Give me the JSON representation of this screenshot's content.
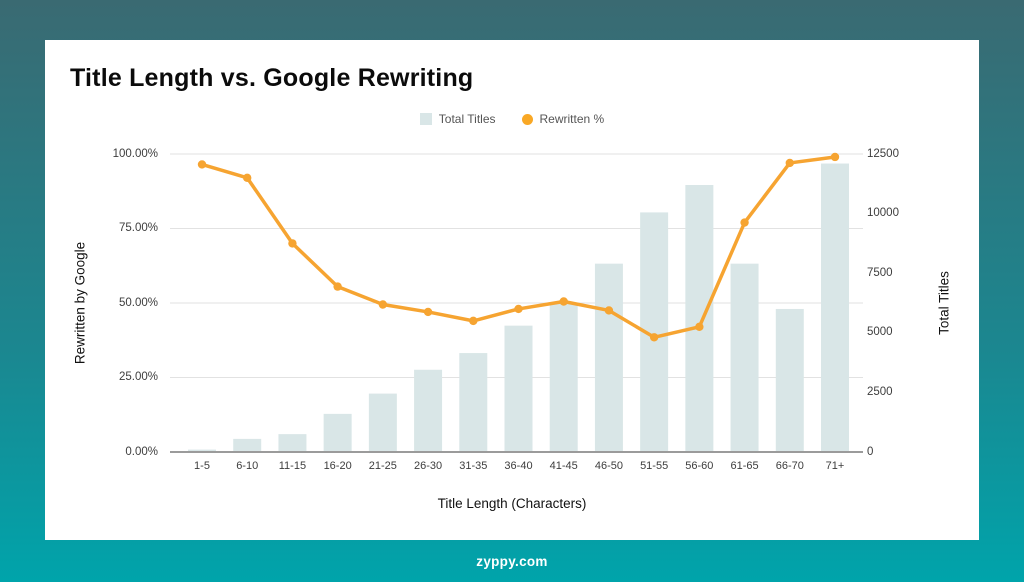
{
  "page": {
    "footer_text": "zyppy.com",
    "background_top_color": "#3a6a72",
    "background_bottom_color": "#00a4ab"
  },
  "chart_data": {
    "type": "bar",
    "subtype": "combo-bar-line-dual-axis",
    "title": "Title Length vs. Google Rewriting",
    "categories": [
      "1-5",
      "6-10",
      "11-15",
      "16-20",
      "21-25",
      "26-30",
      "31-35",
      "36-40",
      "41-45",
      "46-50",
      "51-55",
      "56-60",
      "61-65",
      "66-70",
      "71+"
    ],
    "series": [
      {
        "name": "Total Titles",
        "type": "bar",
        "axis": "right",
        "color": "#d9e6e7",
        "values": [
          100,
          550,
          750,
          1600,
          2450,
          3450,
          4150,
          5300,
          6250,
          7900,
          10050,
          11200,
          7900,
          6000,
          12100
        ]
      },
      {
        "name": "Rewritten %",
        "type": "line",
        "axis": "left",
        "color": "#f6a431",
        "values": [
          96.5,
          92,
          70,
          55.5,
          49.5,
          47,
          44,
          48,
          50.5,
          47.5,
          38.5,
          42,
          77,
          97,
          99
        ]
      }
    ],
    "left_axis": {
      "label": "Rewritten by Google",
      "min": 0,
      "max": 100,
      "tick_labels": [
        "0.00%",
        "25.00%",
        "50.00%",
        "75.00%",
        "100.00%"
      ]
    },
    "right_axis": {
      "label": "Total Titles",
      "min": 0,
      "max": 12500,
      "tick_labels": [
        "0",
        "2500",
        "5000",
        "7500",
        "10000",
        "12500"
      ]
    },
    "x_axis": {
      "label": "Title Length (Characters)"
    },
    "legend": {
      "position": "top-center",
      "items": [
        {
          "label": "Total Titles",
          "shape": "square",
          "color": "#d9e6e7"
        },
        {
          "label": "Rewritten %",
          "shape": "circle",
          "color": "#f9a825"
        }
      ]
    },
    "grid": {
      "horizontal": true,
      "line_color": "#e2e2e2",
      "baseline_color": "#9b9b9b"
    }
  }
}
